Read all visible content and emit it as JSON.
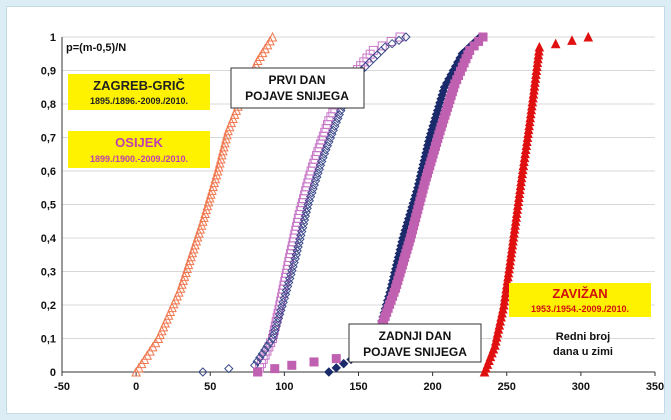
{
  "chart_data": {
    "type": "scatter",
    "title": "",
    "ylabel": "p=(m-0,5)/N",
    "xlabel": "",
    "xlim": [
      -50,
      350
    ],
    "ylim": [
      0,
      1
    ],
    "x_ticks": [
      "-50",
      "0",
      "50",
      "100",
      "150",
      "200",
      "250",
      "300",
      "350"
    ],
    "y_ticks": [
      "0",
      "0,1",
      "0,2",
      "0,3",
      "0,4",
      "0,5",
      "0,6",
      "0,7",
      "0,8",
      "0,9",
      "1"
    ],
    "grid": "horizontal",
    "annotations": {
      "zagreb_title": "ZAGREB-GRIČ",
      "zagreb_years": "1895./1896.-2009./2010.",
      "osijek_title": "OSIJEK",
      "osijek_years": "1899./1900.-2009./2010.",
      "prvi_line1": "PRVI DAN",
      "prvi_line2": "POJAVE SNIJEGA",
      "zadnji_line1": "ZADNJI DAN",
      "zadnji_line2": "POJAVE SNIJEGA",
      "zavizan_title": "ZAVIŽAN",
      "zavizan_years": "1953./1954.-2009./2010.",
      "note_line1": "Redni broj",
      "note_line2": "dana u zimi"
    },
    "series": [
      {
        "key": "zagreb_first",
        "color": "#f07850",
        "marker": "triangle-open",
        "x": [
          0,
          15,
          30,
          45,
          55,
          62,
          72,
          82,
          92
        ],
        "y": [
          0,
          0.1,
          0.25,
          0.45,
          0.6,
          0.72,
          0.83,
          0.93,
          1.0
        ]
      },
      {
        "key": "osijek_first",
        "color": "#c878c8",
        "marker": "square-open",
        "x": [
          82,
          92,
          97,
          103,
          110,
          118,
          130,
          145,
          160,
          178
        ],
        "y": [
          0,
          0.1,
          0.2,
          0.33,
          0.47,
          0.6,
          0.75,
          0.88,
          0.96,
          1.0
        ]
      },
      {
        "key": "zagreb_first_b",
        "color": "#3a4a8a",
        "marker": "diamond-open",
        "x": [
          45,
          80,
          92,
          100,
          108,
          116,
          126,
          138,
          152,
          168,
          182
        ],
        "y": [
          0,
          0.02,
          0.1,
          0.22,
          0.35,
          0.5,
          0.64,
          0.78,
          0.9,
          0.97,
          1.0
        ]
      },
      {
        "key": "zagreb_last",
        "color": "#1a2a6a",
        "marker": "diamond-filled",
        "x": [
          130,
          150,
          165,
          172,
          180,
          190,
          198,
          208,
          220,
          232
        ],
        "y": [
          0,
          0.05,
          0.14,
          0.25,
          0.4,
          0.55,
          0.7,
          0.85,
          0.95,
          1.0
        ]
      },
      {
        "key": "osijek_last",
        "color": "#c060b0",
        "marker": "square-filled",
        "x": [
          82,
          105,
          150,
          165,
          175,
          185,
          195,
          205,
          215,
          225,
          234
        ],
        "y": [
          0,
          0.02,
          0.05,
          0.13,
          0.25,
          0.4,
          0.57,
          0.72,
          0.86,
          0.96,
          1.0
        ]
      },
      {
        "key": "zavizan_last",
        "color": "#e01010",
        "marker": "triangle-filled",
        "x": [
          235,
          242,
          248,
          252,
          256,
          260,
          264,
          268,
          272,
          305
        ],
        "y": [
          0,
          0.08,
          0.2,
          0.32,
          0.45,
          0.58,
          0.7,
          0.83,
          0.97,
          1.0
        ]
      }
    ]
  }
}
